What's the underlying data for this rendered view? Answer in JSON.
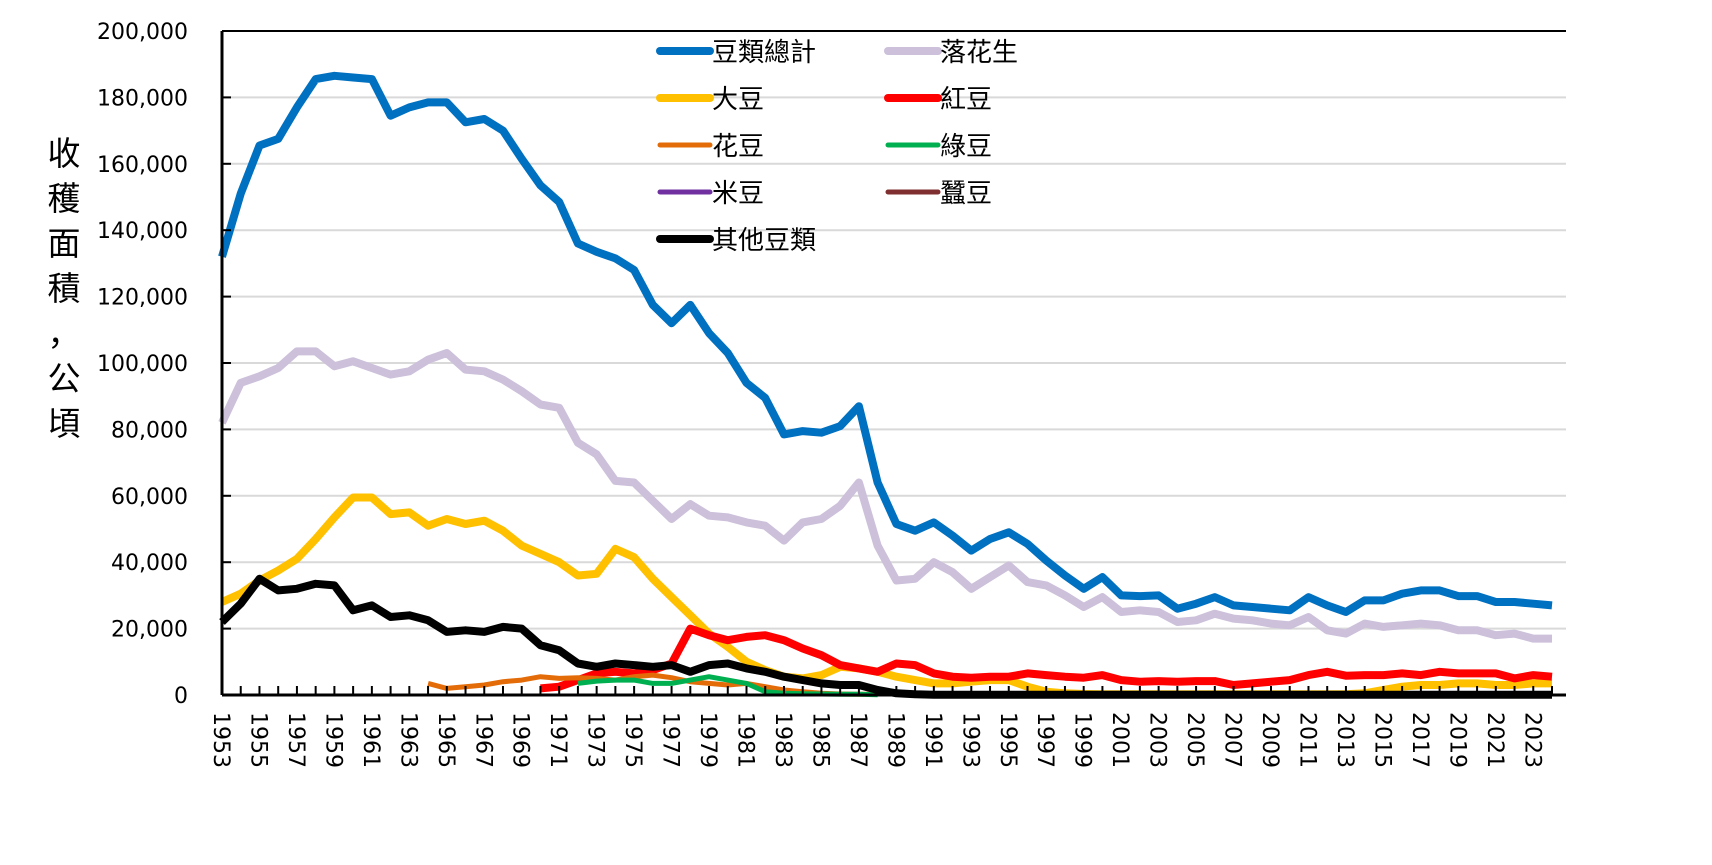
{
  "chart_data": {
    "type": "line",
    "title": "",
    "xlabel": "",
    "ylabel": "收穫面積，公頃",
    "ylabel_chars": [
      "收",
      "穫",
      "面",
      "積",
      "，",
      "公",
      "頃"
    ],
    "ylim": [
      0,
      200000
    ],
    "yticks": [
      0,
      20000,
      40000,
      60000,
      80000,
      100000,
      120000,
      140000,
      160000,
      180000,
      200000
    ],
    "ytick_labels": [
      "0",
      "20,000",
      "40,000",
      "60,000",
      "80,000",
      "100,000",
      "120,000",
      "140,000",
      "160,000",
      "180,000",
      "200,000"
    ],
    "xlim": [
      1953,
      2024
    ],
    "xtick_labels": [
      "1953",
      "1955",
      "1957",
      "1959",
      "1961",
      "1963",
      "1965",
      "1967",
      "1969",
      "1971",
      "1973",
      "1975",
      "1977",
      "1979",
      "1981",
      "1983",
      "1985",
      "1987",
      "1989",
      "1991",
      "1993",
      "1995",
      "1997",
      "1999",
      "2001",
      "2003",
      "2005",
      "2007",
      "2009",
      "2011",
      "2013",
      "2015",
      "2017",
      "2019",
      "2021",
      "2023"
    ],
    "grid": "horizontal",
    "legend_position": "top-center",
    "x_start_year": 1953,
    "series": [
      {
        "name": "豆類總計",
        "color": "#0070C0",
        "weight": "thick",
        "start_year": 1953,
        "values": [
          132000,
          151000,
          165500,
          167500,
          177000,
          185500,
          186500,
          186000,
          185500,
          174500,
          177000,
          178500,
          178500,
          172500,
          173500,
          170000,
          161500,
          153500,
          148500,
          136000,
          133500,
          131500,
          128000,
          117500,
          112000,
          117500,
          109000,
          103000,
          94000,
          89500,
          78500,
          79500,
          79000,
          81000,
          87000,
          64000,
          51500,
          49500,
          52000,
          48000,
          43500,
          47000,
          49000,
          45500,
          40500,
          36000,
          32000,
          35500,
          30000,
          29800,
          30000,
          26000,
          27500,
          29500,
          27000,
          26500,
          26000,
          25500,
          29500,
          27000,
          25000,
          28500,
          28500,
          30500,
          31500,
          31500,
          29800,
          29800,
          28000,
          28000,
          27500,
          27000
        ]
      },
      {
        "name": "落花生",
        "color": "#CCC0DA",
        "weight": "thick",
        "start_year": 1953,
        "values": [
          82000,
          94000,
          96000,
          98500,
          103500,
          103500,
          99000,
          100500,
          98500,
          96500,
          97500,
          101000,
          103000,
          98000,
          97500,
          95000,
          91500,
          87500,
          86500,
          76000,
          72500,
          64500,
          64000,
          58500,
          53000,
          57500,
          54000,
          53500,
          52000,
          51000,
          46500,
          52000,
          53000,
          57000,
          64000,
          45000,
          34500,
          35000,
          40000,
          37000,
          32000,
          35500,
          39000,
          34000,
          33000,
          30000,
          26500,
          29500,
          25000,
          25500,
          25000,
          22000,
          22500,
          24500,
          23000,
          22500,
          21500,
          21000,
          23500,
          19500,
          18500,
          21500,
          20500,
          21000,
          21500,
          21000,
          19500,
          19500,
          18000,
          18500,
          17000,
          17000
        ]
      },
      {
        "name": "大豆",
        "color": "#FFC000",
        "weight": "thick",
        "start_year": 1953,
        "values": [
          28000,
          30500,
          34500,
          37500,
          41000,
          47000,
          53500,
          59500,
          59500,
          54500,
          55000,
          51000,
          53000,
          51500,
          52500,
          49500,
          45000,
          42500,
          40000,
          36000,
          36500,
          44000,
          41500,
          35000,
          29500,
          24000,
          18500,
          14500,
          10000,
          7500,
          5500,
          5000,
          6000,
          8500,
          8000,
          7000,
          5500,
          4500,
          3500,
          3500,
          4000,
          4500,
          4500,
          2500,
          1000,
          500,
          300,
          200,
          200,
          200,
          200,
          200,
          200,
          200,
          200,
          200,
          200,
          200,
          200,
          200,
          200,
          500,
          1500,
          2500,
          3000,
          3000,
          3500,
          3500,
          3000,
          3000,
          3500,
          3500
        ]
      },
      {
        "name": "紅豆",
        "color": "#FF0000",
        "weight": "thick",
        "start_year": 1970,
        "values": [
          2000,
          2500,
          4500,
          6500,
          7000,
          6500,
          7500,
          9500,
          20000,
          18000,
          16500,
          17500,
          18000,
          16500,
          14000,
          12000,
          9000,
          8000,
          7000,
          9500,
          9000,
          6500,
          5500,
          5200,
          5500,
          5500,
          6500,
          6000,
          5500,
          5200,
          6000,
          4500,
          4000,
          4200,
          4000,
          4200,
          4200,
          3000,
          3500,
          4000,
          4500,
          6000,
          7000,
          5800,
          6000,
          6000,
          6500,
          6000,
          7000,
          6500,
          6500,
          6500,
          5000,
          6000,
          5500
        ]
      },
      {
        "name": "花豆",
        "color": "#E36C09",
        "weight": "thin",
        "start_year": 1964,
        "values": [
          3500,
          2000,
          2500,
          3000,
          4000,
          4500,
          5500,
          5000,
          5200,
          5000,
          4500,
          5500,
          6000,
          5200,
          4000,
          3500,
          3000,
          3500,
          2500,
          1500,
          1000,
          500,
          300,
          200,
          200
        ]
      },
      {
        "name": "綠豆",
        "color": "#00B050",
        "weight": "thin",
        "start_year": 1972,
        "values": [
          3500,
          4200,
          4500,
          4500,
          3500,
          3500,
          4500,
          5500,
          4500,
          3500,
          1000,
          500,
          400,
          300,
          200,
          200,
          100
        ]
      },
      {
        "name": "米豆",
        "color": "#7030A0",
        "weight": "thin",
        "start_year": 1953,
        "values": []
      },
      {
        "name": "蠶豆",
        "color": "#7F2F2F",
        "weight": "thin",
        "start_year": 1953,
        "values": []
      },
      {
        "name": "其他豆類",
        "color": "#000000",
        "weight": "thick",
        "start_year": 1953,
        "values": [
          22000,
          27500,
          35000,
          31500,
          32000,
          33500,
          33000,
          25500,
          27000,
          23500,
          24000,
          22500,
          19000,
          19500,
          19000,
          20500,
          20000,
          15000,
          13500,
          9500,
          8500,
          9500,
          9000,
          8500,
          9000,
          7000,
          9000,
          9500,
          8000,
          7000,
          5500,
          4500,
          3500,
          3000,
          3000,
          1500,
          500,
          200,
          100,
          100,
          100,
          100,
          100,
          100,
          100,
          100,
          100,
          100,
          100,
          100,
          100,
          100,
          100,
          100,
          100,
          100,
          100,
          100,
          100,
          100,
          100,
          100,
          100,
          100,
          100,
          100,
          100,
          100,
          100,
          100,
          100,
          100
        ]
      }
    ],
    "legend_layout": [
      [
        "豆類總計",
        "落花生"
      ],
      [
        "大豆",
        "紅豆"
      ],
      [
        "花豆",
        "綠豆"
      ],
      [
        "米豆",
        "蠶豆"
      ],
      [
        "其他豆類"
      ]
    ]
  }
}
